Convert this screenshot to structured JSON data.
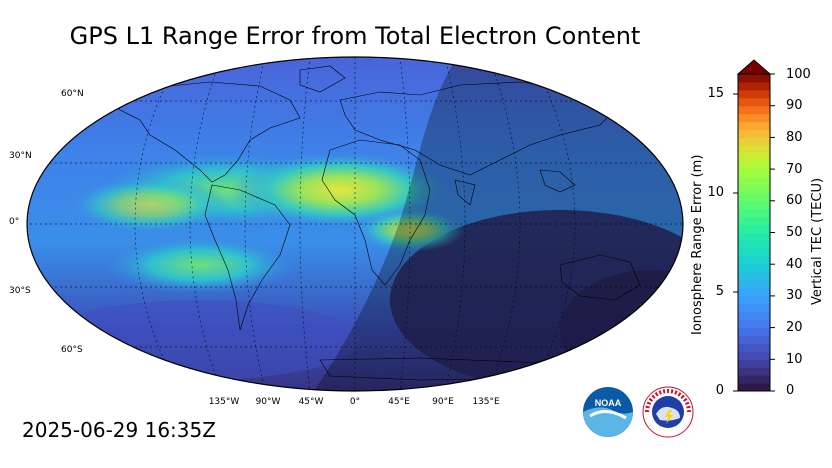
{
  "title": "GPS L1 Range Error from Total Electron Content",
  "timestamp": "2025-06-29 16:35Z",
  "map": {
    "lat_labels": [
      "60°N",
      "30°N",
      "0°",
      "30°S",
      "60°S"
    ],
    "lon_labels": [
      "135°W",
      "90°W",
      "45°W",
      "0°",
      "45°E",
      "90°E",
      "135°E"
    ]
  },
  "colorbar": {
    "left_label": "Ionosphere Range Error (m)",
    "right_label": "Vertical TEC (TECU)",
    "left_ticks": [
      "0",
      "5",
      "10",
      "15"
    ],
    "right_ticks": [
      "0",
      "10",
      "20",
      "30",
      "40",
      "50",
      "60",
      "70",
      "80",
      "90",
      "100"
    ]
  },
  "logos": {
    "noaa": "NOAA",
    "nws": "NATIONAL WEATHER SERVICE"
  },
  "colors": {
    "ocean_low": "#3a2f7a",
    "mid": "#2fb0e0",
    "high": "#d9e24a",
    "night_shade": "rgba(0,0,0,0.28)"
  }
}
